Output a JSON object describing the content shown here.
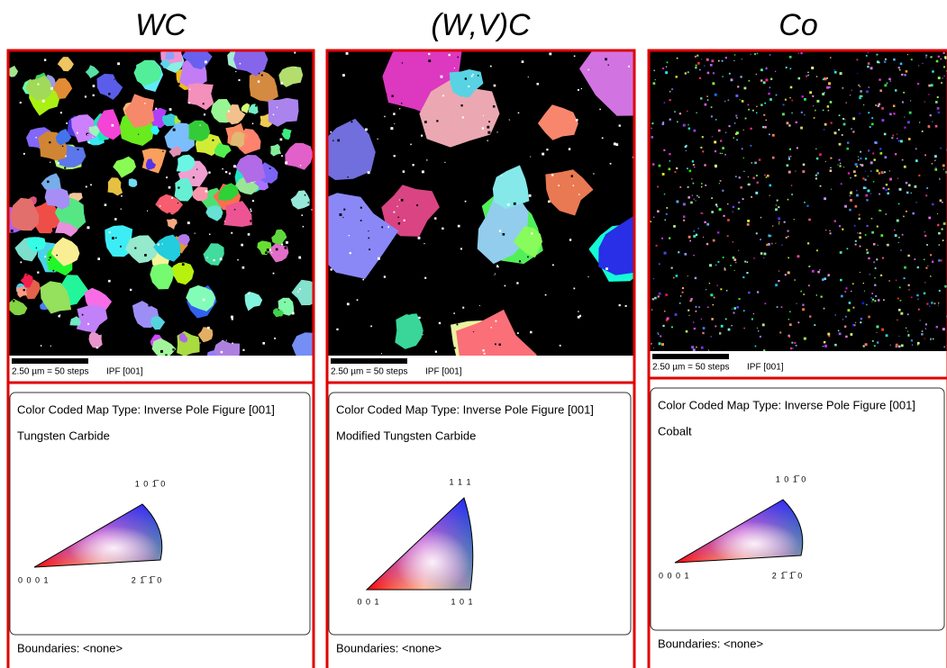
{
  "panels": [
    {
      "title": "WC",
      "scale_bar": "2.50 µm = 50 steps",
      "map_type": "IPF [001]",
      "legend_heading": "Color Coded Map Type: Inverse Pole Figure [001]",
      "phase": "Tungsten Carbide",
      "triangle_labels": {
        "top": "1 0 1̅ 0",
        "left": "0 0 0 1",
        "right": "2 1̅ 1̅ 0"
      },
      "boundaries": "Boundaries: <none>"
    },
    {
      "title": "(W,V)C",
      "scale_bar": "2.50 µm = 50 steps",
      "map_type": "IPF [001]",
      "legend_heading": "Color Coded Map Type: Inverse Pole Figure [001]",
      "phase": "Modified Tungsten Carbide",
      "triangle_labels": {
        "top": "1 1 1",
        "left": "0 0 1",
        "right": "1 0 1"
      },
      "boundaries": "Boundaries: <none>"
    },
    {
      "title": "Co",
      "scale_bar": "2.50 µm = 50 steps",
      "map_type": "IPF [001]",
      "legend_heading": "Color Coded Map Type: Inverse Pole Figure [001]",
      "phase": "Cobalt",
      "triangle_labels": {
        "top": "1 0 1̅ 0",
        "left": "0 0 0 1",
        "right": "2 1̅ 1̅ 0"
      },
      "boundaries": "Boundaries: <none>"
    }
  ]
}
